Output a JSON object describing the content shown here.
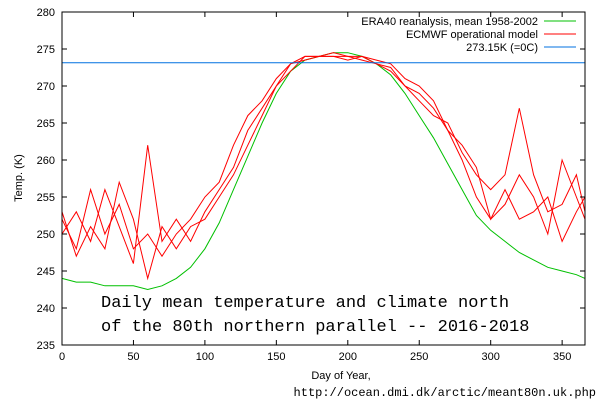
{
  "chart_data": {
    "type": "line",
    "xlabel": "Day of Year,",
    "ylabel": "Temp. (K)",
    "xlim": [
      0,
      366
    ],
    "ylim": [
      235,
      280
    ],
    "xticks": [
      0,
      50,
      100,
      150,
      200,
      250,
      300,
      350
    ],
    "yticks": [
      235,
      240,
      245,
      250,
      255,
      260,
      265,
      270,
      275,
      280
    ],
    "grid": false,
    "legend_position": "top-right",
    "annotation_lines": [
      "Daily mean temperature and climate north",
      "of the 80th northern parallel -- 2016-2018"
    ],
    "source": "http://ocean.dmi.dk/arctic/meant80n.uk.php",
    "x": [
      0,
      10,
      20,
      30,
      40,
      50,
      60,
      70,
      80,
      90,
      100,
      110,
      120,
      130,
      140,
      150,
      160,
      170,
      180,
      190,
      200,
      210,
      220,
      230,
      240,
      250,
      260,
      270,
      280,
      290,
      300,
      310,
      320,
      330,
      340,
      350,
      360,
      366
    ],
    "series": [
      {
        "name": "ERA40 reanalysis, mean 1958-2002",
        "color": "#00c000",
        "values": [
          244,
          243.5,
          243.5,
          243,
          243,
          243,
          242.5,
          243,
          244,
          245.5,
          248,
          251.5,
          256,
          260.5,
          265,
          269,
          272,
          273.5,
          274,
          274.5,
          274.5,
          274,
          273,
          271.5,
          269,
          266,
          263,
          259.5,
          256,
          252.5,
          250.5,
          249,
          247.5,
          246.5,
          245.5,
          245,
          244.5,
          244
        ]
      },
      {
        "name": "ECMWF operational model",
        "color": "#ff0000",
        "values": [
          252,
          248,
          256,
          250,
          254,
          248,
          250,
          247,
          250,
          252,
          255,
          257,
          262,
          266,
          268,
          271,
          273,
          274,
          274,
          274,
          274,
          274,
          273.5,
          273,
          271,
          270,
          268,
          264,
          260,
          255,
          252,
          254,
          258,
          255,
          250,
          260,
          255,
          252
        ]
      },
      {
        "color": "#ff0000",
        "values": [
          250,
          253,
          249,
          256,
          251,
          246,
          262,
          249,
          252,
          249,
          253,
          256,
          259,
          264,
          267,
          270,
          273,
          273.5,
          274,
          274,
          273.5,
          274,
          273,
          272,
          270,
          268,
          266,
          265,
          261,
          258,
          256,
          258,
          267,
          258,
          253,
          254,
          258,
          253
        ]
      },
      {
        "color": "#ff0000",
        "values": [
          253,
          247,
          251,
          248,
          257,
          252,
          244,
          251,
          248,
          251,
          252,
          255,
          258,
          262,
          266,
          270,
          272,
          274,
          274,
          274.5,
          274,
          273.5,
          273,
          272.5,
          270,
          269,
          267,
          264,
          262,
          259,
          252,
          256,
          252,
          253,
          255,
          249,
          253,
          255
        ]
      }
    ],
    "reference_line": {
      "name": "273.15K (=0C)",
      "value": 273.15,
      "color": "#0070e0"
    }
  }
}
